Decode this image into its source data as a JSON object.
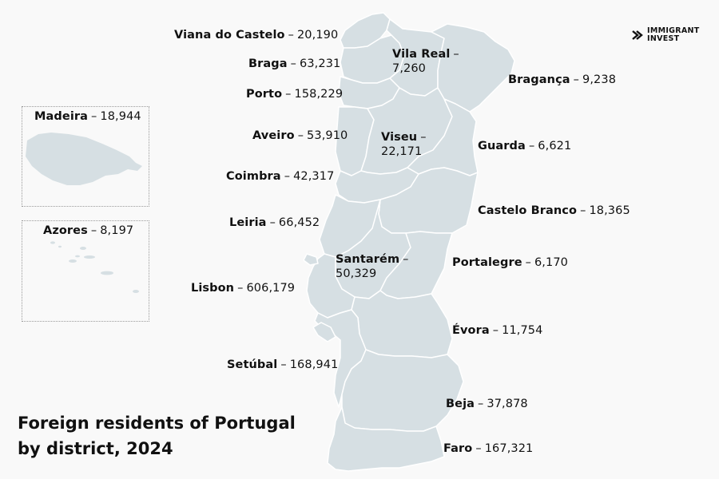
{
  "title_line1": "Foreign residents of Portugal",
  "title_line2": "by district, 2024",
  "logo": {
    "line1": "IMMIGRANT",
    "line2": "INVEST",
    "icon": "double-chevron-logo-icon"
  },
  "colors": {
    "land": "#d6dfe3",
    "border": "#ffffff",
    "background": "#f9f9f9",
    "text": "#111111"
  },
  "districts": [
    {
      "name": "Viana do Castelo",
      "value": "20,190"
    },
    {
      "name": "Braga",
      "value": "63,231"
    },
    {
      "name": "Vila Real",
      "value": "7,260"
    },
    {
      "name": "Bragança",
      "value": "9,238"
    },
    {
      "name": "Porto",
      "value": "158,229"
    },
    {
      "name": "Aveiro",
      "value": "53,910"
    },
    {
      "name": "Viseu",
      "value": "22,171"
    },
    {
      "name": "Guarda",
      "value": "6,621"
    },
    {
      "name": "Coimbra",
      "value": "42,317"
    },
    {
      "name": "Castelo Branco",
      "value": "18,365"
    },
    {
      "name": "Leiria",
      "value": "66,452"
    },
    {
      "name": "Santarém",
      "value": "50,329"
    },
    {
      "name": "Portalegre",
      "value": "6,170"
    },
    {
      "name": "Lisbon",
      "value": "606,179"
    },
    {
      "name": "Évora",
      "value": "11,754"
    },
    {
      "name": "Setúbal",
      "value": "168,941"
    },
    {
      "name": "Beja",
      "value": "37,878"
    },
    {
      "name": "Faro",
      "value": "167,321"
    }
  ],
  "insets": [
    {
      "name": "Madeira",
      "value": "18,944"
    },
    {
      "name": "Azores",
      "value": "8,197"
    }
  ]
}
